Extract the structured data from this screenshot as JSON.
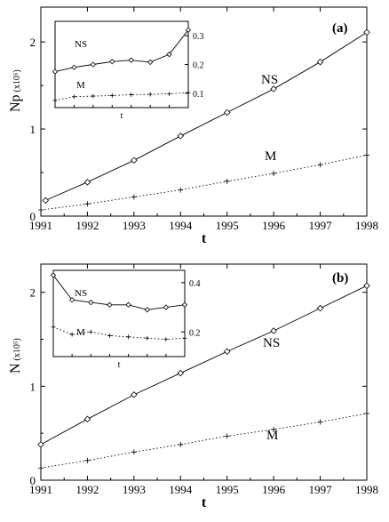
{
  "chart_data": [
    {
      "panel": "(a)",
      "type": "line",
      "ylabel": "Np",
      "ylabel_unit": "(x10⁵)",
      "xlabel": "t",
      "xlim": [
        1991,
        1998
      ],
      "ylim": [
        0,
        2.4
      ],
      "xticks": [
        "1991",
        "1992",
        "1993",
        "1994",
        "1995",
        "1996",
        "1997",
        "1998"
      ],
      "yticks": [
        "0",
        "1",
        "2"
      ],
      "series": [
        {
          "name": "NS",
          "marker": "diamond",
          "style": "solid",
          "x": [
            1991.1,
            1992,
            1993,
            1994,
            1995,
            1996,
            1997,
            1998
          ],
          "values": [
            0.18,
            0.39,
            0.64,
            0.92,
            1.19,
            1.46,
            1.77,
            2.11
          ]
        },
        {
          "name": "M",
          "marker": "plus",
          "style": "dotted",
          "x": [
            1991,
            1992,
            1993,
            1994,
            1995,
            1996,
            1997,
            1998
          ],
          "values": [
            0.07,
            0.14,
            0.22,
            0.3,
            0.4,
            0.49,
            0.59,
            0.7
          ]
        }
      ],
      "inset": {
        "xlabel": "t",
        "ylim": [
          0.05,
          0.35
        ],
        "yticks": [
          "0.1",
          "0.2",
          "0.3"
        ],
        "series": [
          {
            "name": "NS",
            "marker": "diamond",
            "style": "solid",
            "values": [
              0.175,
              0.19,
              0.2,
              0.21,
              0.215,
              0.208,
              0.235,
              0.32
            ]
          },
          {
            "name": "M",
            "marker": "plus",
            "style": "dotted",
            "values": [
              0.075,
              0.088,
              0.09,
              0.092,
              0.095,
              0.096,
              0.098,
              0.102
            ]
          }
        ]
      }
    },
    {
      "panel": "(b)",
      "type": "line",
      "ylabel": "N",
      "ylabel_unit": "(x10⁵)",
      "xlabel": "t",
      "xlim": [
        1991,
        1998
      ],
      "ylim": [
        0,
        2.3
      ],
      "xticks": [
        "1991",
        "1992",
        "1993",
        "1994",
        "1995",
        "1996",
        "1997",
        "1998"
      ],
      "yticks": [
        "0",
        "1",
        "2"
      ],
      "series": [
        {
          "name": "NS",
          "marker": "diamond",
          "style": "solid",
          "x": [
            1991,
            1992,
            1993,
            1994,
            1995,
            1996,
            1997,
            1998
          ],
          "values": [
            0.38,
            0.65,
            0.91,
            1.14,
            1.37,
            1.59,
            1.83,
            2.07
          ]
        },
        {
          "name": "M",
          "marker": "plus",
          "style": "dotted",
          "x": [
            1991,
            1992,
            1993,
            1994,
            1995,
            1996,
            1997,
            1998
          ],
          "values": [
            0.13,
            0.21,
            0.3,
            0.38,
            0.47,
            0.54,
            0.62,
            0.71
          ]
        }
      ],
      "inset": {
        "xlabel": "t",
        "ylim": [
          0.1,
          0.45
        ],
        "yticks": [
          "0.2",
          "0.4"
        ],
        "series": [
          {
            "name": "NS",
            "marker": "diamond",
            "style": "solid",
            "values": [
              0.43,
              0.33,
              0.32,
              0.31,
              0.31,
              0.29,
              0.3,
              0.31
            ]
          },
          {
            "name": "M",
            "marker": "plus",
            "style": "dotted",
            "values": [
              0.22,
              0.19,
              0.2,
              0.185,
              0.18,
              0.175,
              0.17,
              0.175
            ]
          }
        ]
      }
    }
  ]
}
